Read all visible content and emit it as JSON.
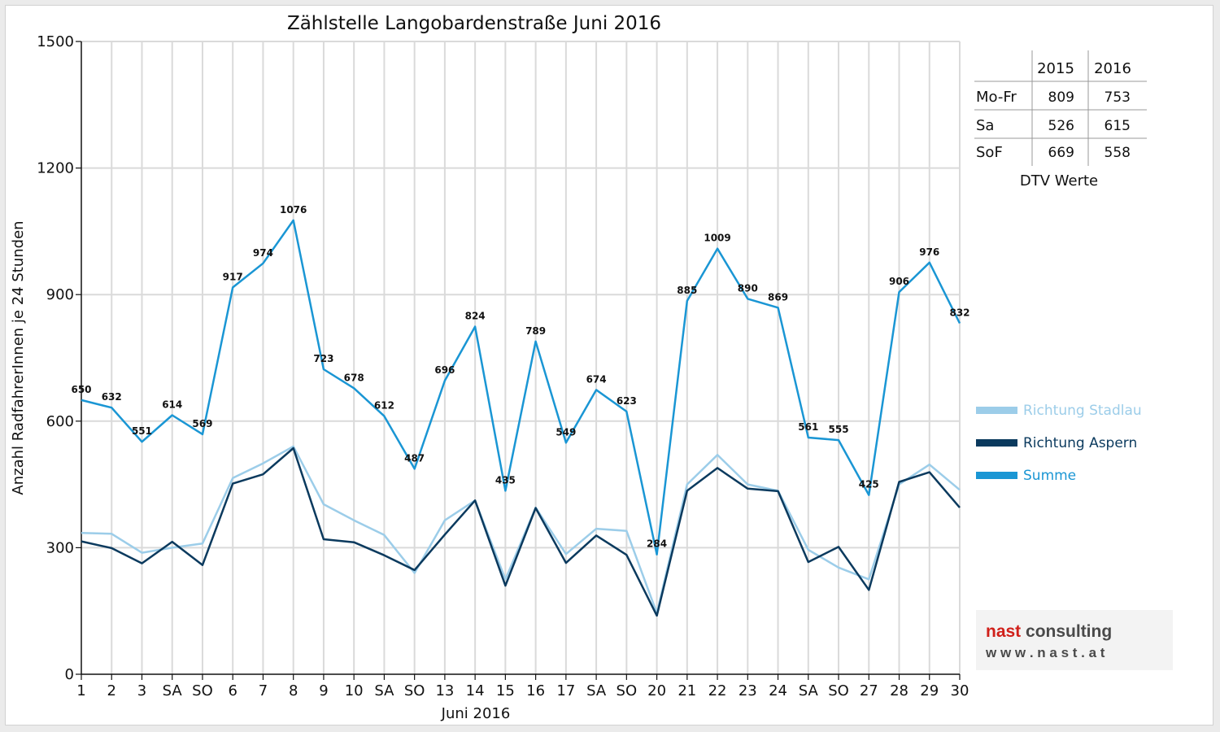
{
  "chart_data": {
    "type": "line",
    "title": "Zählstelle Langobardenstraße Juni 2016",
    "xlabel": "Juni 2016",
    "ylabel": "Anzahl RadfahrerInnen je 24 Stunden",
    "ylim": [
      0,
      1500
    ],
    "yticks": [
      "0",
      "300",
      "600",
      "900",
      "1200",
      "1500"
    ],
    "x_tick_labels": [
      "1",
      "2",
      "3",
      "SA",
      "SO",
      "6",
      "7",
      "8",
      "9",
      "10",
      "SA",
      "SO",
      "13",
      "14",
      "15",
      "16",
      "17",
      "SA",
      "SO",
      "20",
      "21",
      "22",
      "23",
      "24",
      "SA",
      "SO",
      "27",
      "28",
      "29",
      "30"
    ],
    "grid": true,
    "legend_position": "right",
    "series": [
      {
        "name": "Richtung Stadlau",
        "color": "#9ccde9",
        "values": [
          335,
          333,
          288,
          300,
          310,
          465,
          500,
          540,
          403,
          365,
          330,
          240,
          365,
          412,
          225,
          395,
          285,
          345,
          340,
          145,
          450,
          520,
          450,
          435,
          295,
          253,
          225,
          450,
          497,
          437
        ]
      },
      {
        "name": "Richtung Aspern",
        "color": "#0b3a5e",
        "values": [
          315,
          299,
          263,
          314,
          259,
          452,
          474,
          536,
          320,
          313,
          282,
          247,
          331,
          412,
          210,
          394,
          264,
          329,
          283,
          139,
          435,
          489,
          440,
          434,
          266,
          302,
          200,
          456,
          479,
          395
        ]
      },
      {
        "name": "Summe",
        "color": "#1a96d4",
        "values": [
          650,
          632,
          551,
          614,
          569,
          917,
          974,
          1076,
          723,
          678,
          612,
          487,
          696,
          824,
          435,
          789,
          549,
          674,
          623,
          284,
          885,
          1009,
          890,
          869,
          561,
          555,
          425,
          906,
          976,
          832
        ]
      }
    ],
    "data_labels": [
      "650",
      "632",
      "551",
      "614",
      "569",
      "917",
      "974",
      "1076",
      "723",
      "678",
      "612",
      "487",
      "696",
      "824",
      "435",
      "789",
      "549",
      "674",
      "623",
      "284",
      "885",
      "1009",
      "890",
      "869",
      "561",
      "555",
      "425",
      "906",
      "976",
      "832"
    ]
  },
  "colors": {
    "stadlau": "#9ccde9",
    "aspern": "#0b3a5e",
    "summe": "#1a96d4",
    "weekend_red": "#e00000",
    "logo_red": "#d0201a",
    "logo_grey": "#4a4a4a"
  },
  "dtv_table": {
    "headers": [
      "2015",
      "2016"
    ],
    "rows": [
      {
        "label": "Mo-Fr",
        "v2015": "809",
        "v2016": "753"
      },
      {
        "label": "Sa",
        "v2015": "526",
        "v2016": "615"
      },
      {
        "label": "SoF",
        "v2015": "669",
        "v2016": "558"
      }
    ],
    "caption": "DTV Werte"
  },
  "logo": {
    "name": "nast consulting",
    "url": "w w w . n a s t . a t"
  }
}
